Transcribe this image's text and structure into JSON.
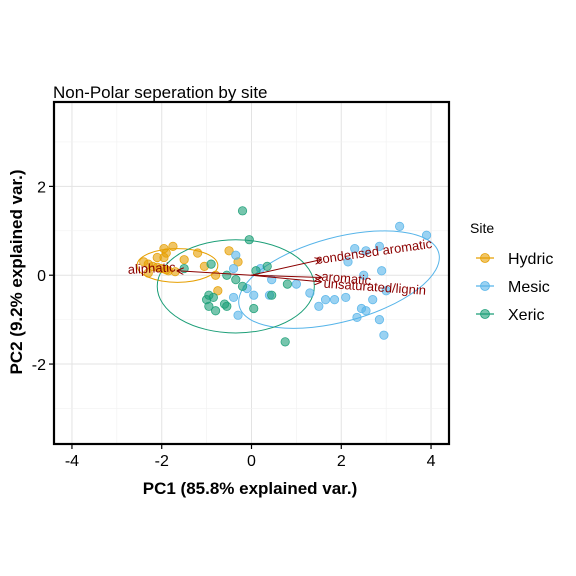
{
  "chart_data": {
    "type": "scatter",
    "title": "Non-Polar seperation by site",
    "xlabel": "PC1 (85.8% explained var.)",
    "ylabel": "PC2 (9.2% explained var.)",
    "xlim": [
      -4.4,
      4.4
    ],
    "ylim": [
      -3.8,
      3.9
    ],
    "x_ticks": [
      -4,
      -2,
      0,
      2,
      4
    ],
    "y_ticks": [
      -2,
      0,
      2
    ],
    "grid": true,
    "legend": {
      "title": "Site",
      "position": "right"
    },
    "series": [
      {
        "name": "Hydric",
        "color": "#E69F00",
        "points": [
          [
            -1.75,
            0.65
          ],
          [
            -1.95,
            0.6
          ],
          [
            -1.9,
            0.5
          ],
          [
            -2.1,
            0.4
          ],
          [
            -1.95,
            0.4
          ],
          [
            -2.4,
            0.3
          ],
          [
            -2.3,
            0.25
          ],
          [
            -2.2,
            0.2
          ],
          [
            -2.1,
            0.18
          ],
          [
            -2.0,
            0.15
          ],
          [
            -1.9,
            0.12
          ],
          [
            -1.85,
            0.1
          ],
          [
            -1.7,
            0.08
          ],
          [
            -2.3,
            0.05
          ],
          [
            -1.5,
            0.35
          ],
          [
            -1.2,
            0.5
          ],
          [
            -1.05,
            0.2
          ],
          [
            -0.8,
            0.0
          ],
          [
            -0.3,
            0.3
          ],
          [
            -0.5,
            0.55
          ],
          [
            -0.75,
            -0.35
          ]
        ]
      },
      {
        "name": "Mesic",
        "color": "#56B4E9",
        "points": [
          [
            3.3,
            1.1
          ],
          [
            3.9,
            0.9
          ],
          [
            2.85,
            0.65
          ],
          [
            2.55,
            0.55
          ],
          [
            2.3,
            0.6
          ],
          [
            2.15,
            0.3
          ],
          [
            2.5,
            0.0
          ],
          [
            2.9,
            0.1
          ],
          [
            3.0,
            -0.35
          ],
          [
            2.7,
            -0.55
          ],
          [
            2.45,
            -0.75
          ],
          [
            2.1,
            -0.5
          ],
          [
            1.85,
            -0.55
          ],
          [
            1.65,
            -0.55
          ],
          [
            1.5,
            -0.7
          ],
          [
            2.55,
            -0.8
          ],
          [
            2.35,
            -0.95
          ],
          [
            2.85,
            -1.0
          ],
          [
            2.95,
            -1.35
          ],
          [
            0.45,
            -0.1
          ],
          [
            0.2,
            0.15
          ],
          [
            -0.35,
            0.45
          ],
          [
            -0.4,
            0.15
          ],
          [
            -0.1,
            -0.3
          ],
          [
            0.05,
            -0.45
          ],
          [
            -0.4,
            -0.5
          ],
          [
            0.4,
            -0.45
          ],
          [
            -0.3,
            -0.9
          ],
          [
            1.3,
            -0.4
          ],
          [
            1.0,
            -0.2
          ]
        ]
      },
      {
        "name": "Xeric",
        "color": "#1B9E77",
        "points": [
          [
            -0.2,
            1.45
          ],
          [
            -0.05,
            0.8
          ],
          [
            -0.9,
            0.25
          ],
          [
            -1.5,
            0.15
          ],
          [
            -0.55,
            0.0
          ],
          [
            -0.35,
            -0.1
          ],
          [
            -0.2,
            -0.25
          ],
          [
            0.1,
            0.1
          ],
          [
            0.35,
            0.2
          ],
          [
            0.8,
            -0.2
          ],
          [
            -0.95,
            -0.45
          ],
          [
            -0.85,
            -0.5
          ],
          [
            -1.0,
            -0.55
          ],
          [
            -0.6,
            -0.65
          ],
          [
            -0.95,
            -0.7
          ],
          [
            -0.8,
            -0.8
          ],
          [
            0.45,
            -0.45
          ],
          [
            0.75,
            -1.5
          ],
          [
            0.05,
            -0.75
          ],
          [
            -0.55,
            -0.7
          ]
        ]
      }
    ],
    "ellipses": [
      {
        "series": "Hydric",
        "cx": -1.65,
        "cy": 0.22,
        "rx": 0.9,
        "ry": 0.38,
        "angle": 0
      },
      {
        "series": "Mesic",
        "cx": 1.95,
        "cy": -0.1,
        "rx": 2.3,
        "ry": 0.95,
        "angle": 15
      },
      {
        "series": "Xeric",
        "cx": -0.35,
        "cy": -0.25,
        "rx": 1.75,
        "ry": 1.05,
        "angle": 0
      }
    ],
    "loadings": [
      {
        "label": "aliphatic",
        "x": -1.65,
        "y": 0.1
      },
      {
        "label": "condensed aromatic",
        "x": 1.55,
        "y": 0.35
      },
      {
        "label": "aromatic",
        "x": 1.55,
        "y": -0.05
      },
      {
        "label": "unsaturated/lignin",
        "x": 1.55,
        "y": -0.15
      }
    ]
  }
}
